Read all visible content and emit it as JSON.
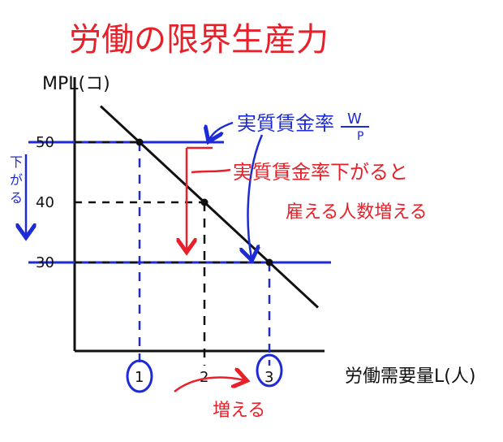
{
  "title": "労働の限界生産力",
  "chart_data": {
    "type": "line",
    "ylabel": "MPL(コ)",
    "xlabel": "労働需要量L(人)",
    "x_ticks": [
      "1",
      "2",
      "3"
    ],
    "y_ticks": [
      "50",
      "40",
      "30"
    ],
    "series": [
      {
        "x": [
          1,
          2,
          3
        ],
        "y": [
          50,
          40,
          30
        ]
      }
    ],
    "xlim": [
      0,
      4
    ],
    "ylim": [
      20,
      55
    ],
    "real_wage_lines": [
      50,
      30
    ],
    "grid": false
  },
  "annotations": {
    "real_wage_label": "実質賃金率",
    "real_wage_symbol_top": "W",
    "real_wage_symbol_bottom": "P",
    "falls_vertical": "下がる",
    "red_note_line1": "実質賃金率下がると",
    "red_note_line2": "雇える人数増える",
    "increases": "増える"
  },
  "colors": {
    "red": "#e8202a",
    "blue": "#1d2bd6",
    "ink": "#111111"
  }
}
